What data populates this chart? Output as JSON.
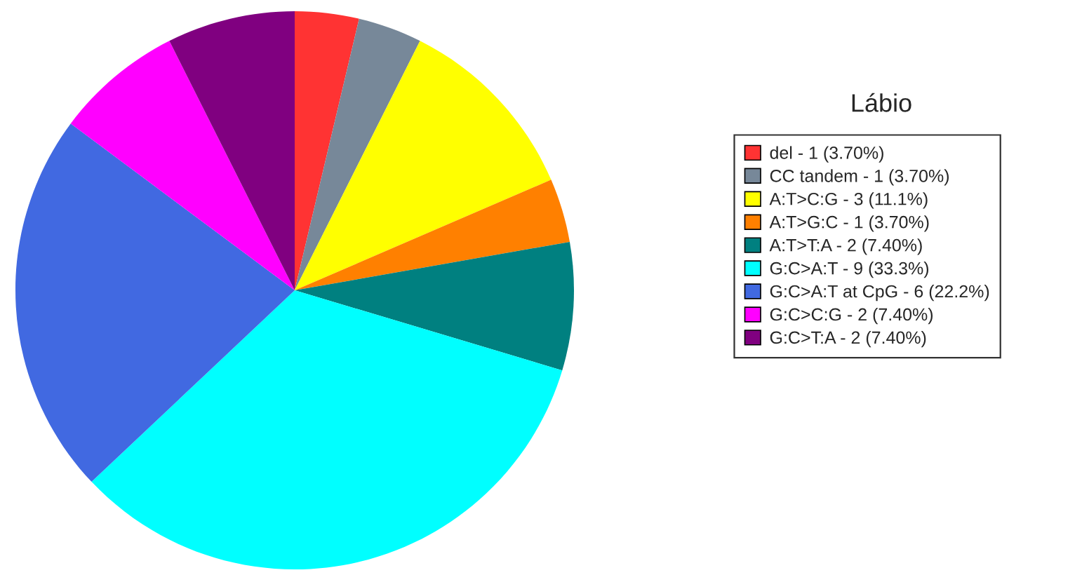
{
  "chart_data": {
    "type": "pie",
    "title": "Lábio",
    "categories": [
      "del - 1 (3.70%)",
      "CC tandem - 1 (3.70%)",
      "A:T>C:G - 3 (11.1%)",
      "A:T>G:C - 1 (3.70%)",
      "A:T>T:A - 2 (7.40%)",
      "G:C>A:T - 9 (33.3%)",
      "G:C>A:T at CpG - 6 (22.2%)",
      "G:C>C:G - 2 (7.40%)",
      "G:C>T:A - 2 (7.40%)"
    ],
    "values": [
      3.7,
      3.7,
      11.1,
      3.7,
      7.4,
      33.3,
      22.2,
      7.4,
      7.4
    ],
    "colors": [
      "#ff3333",
      "#778899",
      "#ffff00",
      "#ff8000",
      "#008080",
      "#00ffff",
      "#4169e1",
      "#ff00ff",
      "#800080"
    ],
    "legend": "right"
  }
}
